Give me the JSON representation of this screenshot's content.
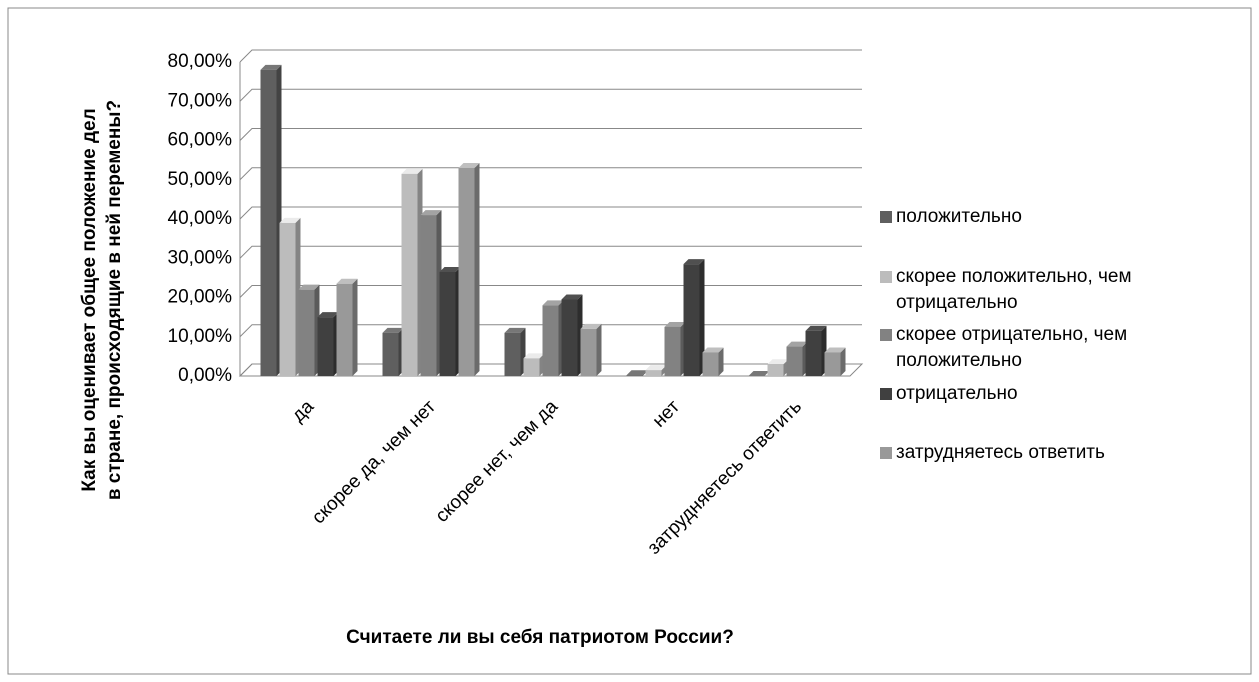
{
  "chart_data": {
    "type": "bar3d",
    "x_label": "Считаете ли вы себя патриотом России?",
    "y_label": "Как вы оценивает общее положение дел в стране, происходящие в ней перемены?",
    "categories": [
      "да",
      "скорее да, чем нет",
      "скорее нет, чем да",
      "нет",
      "затрудняетесь ответить"
    ],
    "series": [
      {
        "name": "положительно",
        "color": "#5f5f5f",
        "values": [
          78,
          11,
          11,
          0.2,
          0
        ]
      },
      {
        "name": "скорее положительно, чем отрицательно",
        "color": "#bcbcbc",
        "values": [
          39,
          51.5,
          4.5,
          1.5,
          3
        ]
      },
      {
        "name": "скорее отрицательно, чем положительно",
        "color": "#828282",
        "values": [
          22,
          41,
          18,
          12.5,
          7.5
        ]
      },
      {
        "name": "отрицательно",
        "color": "#404040",
        "values": [
          15,
          26.5,
          19.5,
          28.5,
          11.5
        ]
      },
      {
        "name": "затрудняетесь ответить",
        "color": "#999999",
        "values": [
          23.5,
          53,
          12,
          6,
          6
        ]
      }
    ],
    "ylim": [
      0,
      80
    ],
    "yticks": [
      {
        "value": 0,
        "label": "0,00%"
      },
      {
        "value": 10,
        "label": "10,00%"
      },
      {
        "value": 20,
        "label": "20,00%"
      },
      {
        "value": 30,
        "label": "30,00%"
      },
      {
        "value": 40,
        "label": "40,00%"
      },
      {
        "value": 50,
        "label": "50,00%"
      },
      {
        "value": 60,
        "label": "60,00%"
      },
      {
        "value": 70,
        "label": "70,00%"
      },
      {
        "value": 80,
        "label": "80,00%"
      }
    ],
    "grid": true,
    "legend": "right"
  }
}
